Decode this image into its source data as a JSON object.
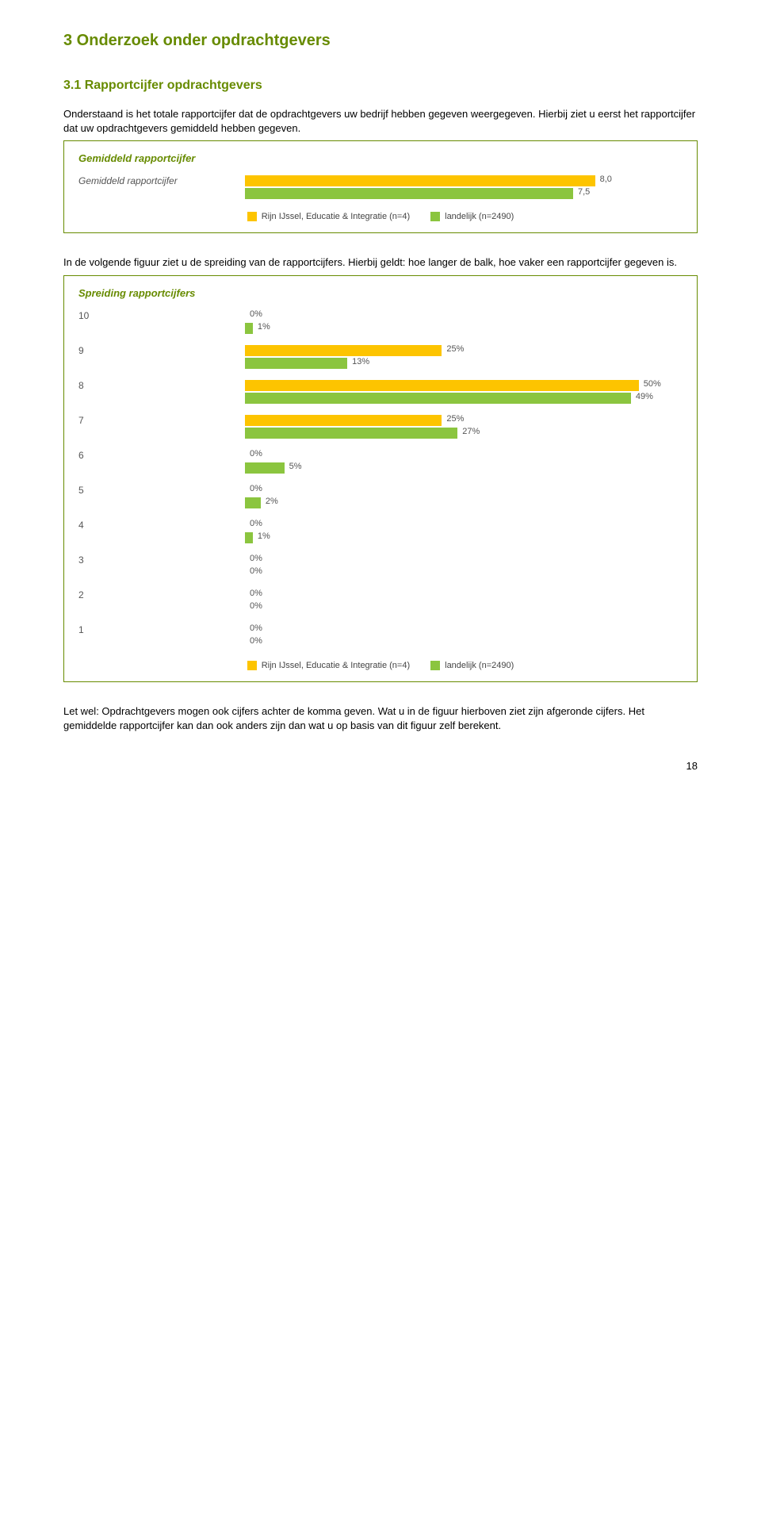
{
  "page": {
    "heading": "3 Onderzoek onder opdrachtgevers",
    "subheading": "3.1 Rapportcijfer opdrachtgevers",
    "intro_para": "Onderstaand is het totale rapportcijfer dat de opdrachtgevers uw bedrijf hebben gegeven weergegeven. Hierbij ziet u eerst het rapportcijfer dat uw opdrachtgevers gemiddeld hebben gegeven.",
    "mid_para": "In de volgende figuur ziet u de spreiding van de rapportcijfers. Hierbij geldt: hoe langer de balk, hoe vaker een rapportcijfer gegeven is.",
    "end_para": "Let wel: Opdrachtgevers mogen ook cijfers achter de komma geven. Wat u in de figuur hierboven ziet zijn afgeronde cijfers. Het gemiddelde rapportcijfer kan dan ook anders zijn dan wat u op basis van dit figuur zelf berekent.",
    "page_number": "18"
  },
  "legend": {
    "series_a": "Rijn IJssel, Educatie & Integratie (n=4)",
    "series_b": "landelijk (n=2490)"
  },
  "chart1": {
    "title": "Gemiddeld rapportcijfer",
    "category_label": "Gemiddeld rapportcijfer",
    "value_a": "8,0",
    "value_b": "7,5",
    "width_a_pct": 80,
    "width_b_pct": 75,
    "color_a": "#fdc400",
    "color_b": "#8bc53f"
  },
  "chart2": {
    "title": "Spreiding rapportcijfers",
    "color_a": "#fdc400",
    "color_b": "#8bc53f",
    "rows": [
      {
        "label": "10",
        "a": "0%",
        "b": "1%",
        "wa": 0,
        "wb": 1.8
      },
      {
        "label": "9",
        "a": "25%",
        "b": "13%",
        "wa": 45,
        "wb": 23.4
      },
      {
        "label": "8",
        "a": "50%",
        "b": "49%",
        "wa": 90,
        "wb": 88.2
      },
      {
        "label": "7",
        "a": "25%",
        "b": "27%",
        "wa": 45,
        "wb": 48.6
      },
      {
        "label": "6",
        "a": "0%",
        "b": "5%",
        "wa": 0,
        "wb": 9
      },
      {
        "label": "5",
        "a": "0%",
        "b": "2%",
        "wa": 0,
        "wb": 3.6
      },
      {
        "label": "4",
        "a": "0%",
        "b": "1%",
        "wa": 0,
        "wb": 1.8
      },
      {
        "label": "3",
        "a": "0%",
        "b": "0%",
        "wa": 0,
        "wb": 0
      },
      {
        "label": "2",
        "a": "0%",
        "b": "0%",
        "wa": 0,
        "wb": 0
      },
      {
        "label": "1",
        "a": "0%",
        "b": "0%",
        "wa": 0,
        "wb": 0
      }
    ]
  }
}
